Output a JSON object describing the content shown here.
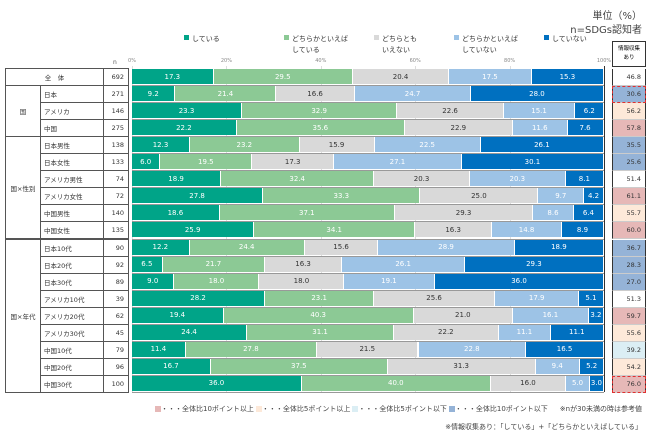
{
  "unit_label": "単位（%）",
  "base_label": "n=SDGs認知者",
  "n_header": "n",
  "info_header": [
    "情報収集",
    "あり"
  ],
  "chart_data": {
    "type": "bar",
    "orientation": "horizontal-stacked-100",
    "xlim": [
      0,
      100
    ],
    "ticks": [
      "0%",
      "20%",
      "40%",
      "60%",
      "80%",
      "100%"
    ],
    "legend": [
      {
        "label": [
          "している"
        ],
        "color": "#00a488",
        "text_color": "#ffffff"
      },
      {
        "label": [
          "どちらかといえば",
          "している"
        ],
        "color": "#8cc995",
        "text_color": "#ffffff"
      },
      {
        "label": [
          "どちらとも",
          "いえない"
        ],
        "color": "#d9d9d9",
        "text_color": "#333333"
      },
      {
        "label": [
          "どちらかといえば",
          "していない"
        ],
        "color": "#9dc3e6",
        "text_color": "#ffffff"
      },
      {
        "label": [
          "していない"
        ],
        "color": "#0070c0",
        "text_color": "#ffffff"
      }
    ],
    "groups": [
      {
        "label": "全　体",
        "rows": [
          {
            "label": "",
            "n": 692,
            "values": [
              17.3,
              29.5,
              20.4,
              17.5,
              15.3
            ],
            "info": 46.8,
            "flag": ""
          }
        ]
      },
      {
        "label": "国",
        "rows": [
          {
            "label": "日本",
            "n": 271,
            "values": [
              9.2,
              21.4,
              16.6,
              24.7,
              28.0
            ],
            "info": 30.6,
            "flag": "minus10",
            "emphasis": true
          },
          {
            "label": "アメリカ",
            "n": 146,
            "values": [
              23.3,
              32.9,
              22.6,
              15.1,
              6.2
            ],
            "info": 56.2,
            "flag": "plus5"
          },
          {
            "label": "中国",
            "n": 275,
            "values": [
              22.2,
              35.6,
              22.9,
              11.6,
              7.6
            ],
            "info": 57.8,
            "flag": "plus10"
          }
        ]
      },
      {
        "label": "国×性別",
        "rows": [
          {
            "label": "日本男性",
            "n": 138,
            "values": [
              12.3,
              23.2,
              15.9,
              22.5,
              26.1
            ],
            "info": 35.5,
            "flag": "minus10"
          },
          {
            "label": "日本女性",
            "n": 133,
            "values": [
              6.0,
              19.5,
              17.3,
              27.1,
              30.1
            ],
            "info": 25.6,
            "flag": "minus10"
          },
          {
            "label": "アメリカ男性",
            "n": 74,
            "values": [
              18.9,
              32.4,
              20.3,
              20.3,
              8.1
            ],
            "info": 51.4,
            "flag": ""
          },
          {
            "label": "アメリカ女性",
            "n": 72,
            "values": [
              27.8,
              33.3,
              25.0,
              9.7,
              4.2
            ],
            "info": 61.1,
            "flag": "plus10"
          },
          {
            "label": "中国男性",
            "n": 140,
            "values": [
              18.6,
              37.1,
              29.3,
              8.6,
              6.4
            ],
            "info": 55.7,
            "flag": "plus5"
          },
          {
            "label": "中国女性",
            "n": 135,
            "values": [
              25.9,
              34.1,
              16.3,
              14.8,
              8.9
            ],
            "info": 60.0,
            "flag": "plus10"
          }
        ]
      },
      {
        "label": "国×年代",
        "rows": [
          {
            "label": "日本10代",
            "n": 90,
            "values": [
              12.2,
              24.4,
              15.6,
              28.9,
              18.9
            ],
            "info": 36.7,
            "flag": "minus10"
          },
          {
            "label": "日本20代",
            "n": 92,
            "values": [
              6.5,
              21.7,
              16.3,
              26.1,
              29.3
            ],
            "info": 28.3,
            "flag": "minus10"
          },
          {
            "label": "日本30代",
            "n": 89,
            "values": [
              9.0,
              18.0,
              18.0,
              19.1,
              36.0
            ],
            "info": 27.0,
            "flag": "minus10"
          },
          {
            "label": "アメリカ10代",
            "n": 39,
            "values": [
              28.2,
              23.1,
              25.6,
              17.9,
              5.1
            ],
            "info": 51.3,
            "flag": ""
          },
          {
            "label": "アメリカ20代",
            "n": 62,
            "values": [
              19.4,
              40.3,
              21.0,
              16.1,
              3.2
            ],
            "info": 59.7,
            "flag": "plus10"
          },
          {
            "label": "アメリカ30代",
            "n": 45,
            "values": [
              24.4,
              31.1,
              22.2,
              11.1,
              11.1
            ],
            "info": 55.6,
            "flag": "plus5"
          },
          {
            "label": "中国10代",
            "n": 79,
            "values": [
              11.4,
              27.8,
              21.5,
              22.8,
              16.5
            ],
            "info": 39.2,
            "flag": "minus5"
          },
          {
            "label": "中国20代",
            "n": 96,
            "values": [
              16.7,
              37.5,
              31.3,
              9.4,
              5.2
            ],
            "info": 54.2,
            "flag": "plus5"
          },
          {
            "label": "中国30代",
            "n": 100,
            "values": [
              36.0,
              40.0,
              16.0,
              5.0,
              3.0
            ],
            "info": 76.0,
            "flag": "plus10",
            "emphasis": true
          }
        ]
      }
    ]
  },
  "flag_colors": {
    "plus10": "#e6b8b7",
    "plus5": "#fde9d9",
    "minus5": "#dbeef4",
    "minus10": "#95b3d7"
  },
  "footer": {
    "legend": [
      {
        "flag": "plus10",
        "label": "・・・全体比10ポイント以上"
      },
      {
        "flag": "plus5",
        "label": "・・・全体比5ポイント以上"
      },
      {
        "flag": "minus5",
        "label": "・・・全体比5ポイント以下"
      },
      {
        "flag": "minus10",
        "label": "・・・全体比10ポイント以下"
      }
    ],
    "note1": "※nが30未満の時は参考値",
    "note2": "※情報収集あり：「している」+「どちらかといえばしている」"
  }
}
